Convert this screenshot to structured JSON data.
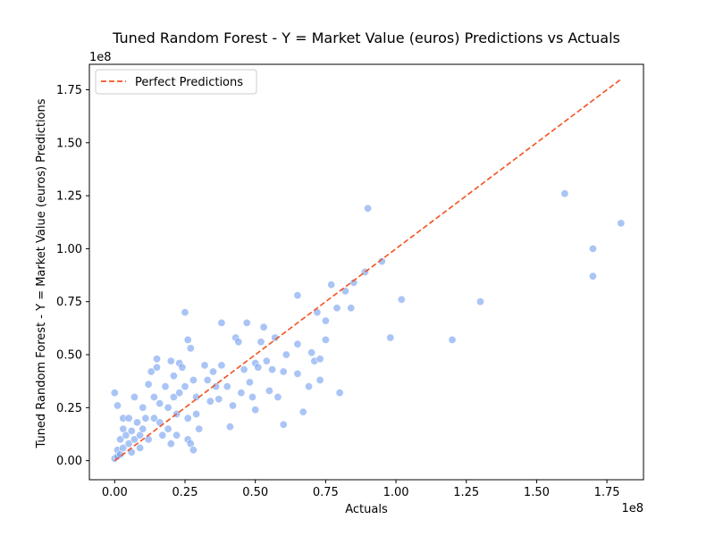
{
  "chart_data": {
    "type": "scatter",
    "title": "Tuned Random Forest - Y = Market Value (euros) Predictions vs Actuals",
    "xlabel": "Actuals",
    "ylabel": "Tuned Random Forest - Y = Market Value (euros) Predictions",
    "x_offset_label": "1e8",
    "y_offset_label": "1e8",
    "xlim": [
      -0.09,
      1.88
    ],
    "ylim": [
      -0.09,
      1.87
    ],
    "x_ticks": [
      0.0,
      0.25,
      0.5,
      0.75,
      1.0,
      1.25,
      1.5,
      1.75
    ],
    "x_tick_labels": [
      "0.00",
      "0.25",
      "0.50",
      "0.75",
      "1.00",
      "1.25",
      "1.50",
      "1.75"
    ],
    "y_ticks": [
      0.0,
      0.25,
      0.5,
      0.75,
      1.0,
      1.25,
      1.5,
      1.75
    ],
    "y_tick_labels": [
      "0.00",
      "0.25",
      "0.50",
      "0.75",
      "1.00",
      "1.25",
      "1.50",
      "1.75"
    ],
    "grid": false,
    "legend_position": "top-left",
    "legend": [
      "Perfect Predictions"
    ],
    "colors": {
      "points": "#6495ed",
      "line": "#f4511e"
    },
    "reference_line": {
      "name": "Perfect Predictions",
      "x": [
        0.0,
        1.8
      ],
      "y": [
        0.0,
        1.8
      ]
    },
    "points": [
      [
        0.0,
        0.32
      ],
      [
        0.01,
        0.26
      ],
      [
        0.03,
        0.2
      ],
      [
        0.03,
        0.15
      ],
      [
        0.02,
        0.1
      ],
      [
        0.01,
        0.05
      ],
      [
        0.0,
        0.01
      ],
      [
        0.01,
        0.02
      ],
      [
        0.02,
        0.03
      ],
      [
        0.03,
        0.06
      ],
      [
        0.04,
        0.12
      ],
      [
        0.05,
        0.2
      ],
      [
        0.06,
        0.14
      ],
      [
        0.05,
        0.08
      ],
      [
        0.06,
        0.04
      ],
      [
        0.07,
        0.1
      ],
      [
        0.07,
        0.3
      ],
      [
        0.08,
        0.18
      ],
      [
        0.09,
        0.12
      ],
      [
        0.09,
        0.06
      ],
      [
        0.1,
        0.25
      ],
      [
        0.1,
        0.15
      ],
      [
        0.11,
        0.2
      ],
      [
        0.12,
        0.1
      ],
      [
        0.12,
        0.36
      ],
      [
        0.13,
        0.42
      ],
      [
        0.14,
        0.3
      ],
      [
        0.14,
        0.2
      ],
      [
        0.15,
        0.48
      ],
      [
        0.15,
        0.44
      ],
      [
        0.16,
        0.27
      ],
      [
        0.16,
        0.18
      ],
      [
        0.17,
        0.12
      ],
      [
        0.18,
        0.35
      ],
      [
        0.19,
        0.25
      ],
      [
        0.19,
        0.15
      ],
      [
        0.2,
        0.08
      ],
      [
        0.2,
        0.47
      ],
      [
        0.21,
        0.4
      ],
      [
        0.21,
        0.3
      ],
      [
        0.22,
        0.22
      ],
      [
        0.22,
        0.12
      ],
      [
        0.23,
        0.32
      ],
      [
        0.23,
        0.46
      ],
      [
        0.24,
        0.44
      ],
      [
        0.25,
        0.7
      ],
      [
        0.25,
        0.35
      ],
      [
        0.26,
        0.2
      ],
      [
        0.26,
        0.1
      ],
      [
        0.26,
        0.57
      ],
      [
        0.27,
        0.53
      ],
      [
        0.27,
        0.08
      ],
      [
        0.28,
        0.05
      ],
      [
        0.28,
        0.38
      ],
      [
        0.29,
        0.3
      ],
      [
        0.29,
        0.22
      ],
      [
        0.3,
        0.15
      ],
      [
        0.32,
        0.45
      ],
      [
        0.33,
        0.38
      ],
      [
        0.34,
        0.28
      ],
      [
        0.35,
        0.42
      ],
      [
        0.36,
        0.35
      ],
      [
        0.37,
        0.29
      ],
      [
        0.38,
        0.45
      ],
      [
        0.38,
        0.65
      ],
      [
        0.4,
        0.35
      ],
      [
        0.41,
        0.16
      ],
      [
        0.42,
        0.26
      ],
      [
        0.43,
        0.58
      ],
      [
        0.44,
        0.56
      ],
      [
        0.45,
        0.32
      ],
      [
        0.46,
        0.43
      ],
      [
        0.47,
        0.65
      ],
      [
        0.48,
        0.37
      ],
      [
        0.49,
        0.3
      ],
      [
        0.5,
        0.46
      ],
      [
        0.5,
        0.24
      ],
      [
        0.51,
        0.44
      ],
      [
        0.52,
        0.56
      ],
      [
        0.53,
        0.63
      ],
      [
        0.54,
        0.47
      ],
      [
        0.55,
        0.33
      ],
      [
        0.56,
        0.43
      ],
      [
        0.57,
        0.58
      ],
      [
        0.58,
        0.3
      ],
      [
        0.6,
        0.17
      ],
      [
        0.6,
        0.42
      ],
      [
        0.61,
        0.5
      ],
      [
        0.65,
        0.41
      ],
      [
        0.65,
        0.55
      ],
      [
        0.65,
        0.78
      ],
      [
        0.67,
        0.23
      ],
      [
        0.69,
        0.35
      ],
      [
        0.7,
        0.51
      ],
      [
        0.71,
        0.47
      ],
      [
        0.72,
        0.7
      ],
      [
        0.73,
        0.38
      ],
      [
        0.73,
        0.48
      ],
      [
        0.75,
        0.57
      ],
      [
        0.75,
        0.66
      ],
      [
        0.77,
        0.83
      ],
      [
        0.79,
        0.72
      ],
      [
        0.8,
        0.32
      ],
      [
        0.82,
        0.8
      ],
      [
        0.84,
        0.72
      ],
      [
        0.85,
        0.84
      ],
      [
        0.89,
        0.89
      ],
      [
        0.9,
        1.19
      ],
      [
        0.95,
        0.94
      ],
      [
        0.98,
        0.58
      ],
      [
        1.02,
        0.76
      ],
      [
        1.2,
        0.57
      ],
      [
        1.3,
        0.75
      ],
      [
        1.6,
        1.26
      ],
      [
        1.7,
        0.87
      ],
      [
        1.7,
        1.0
      ],
      [
        1.8,
        1.12
      ]
    ]
  }
}
